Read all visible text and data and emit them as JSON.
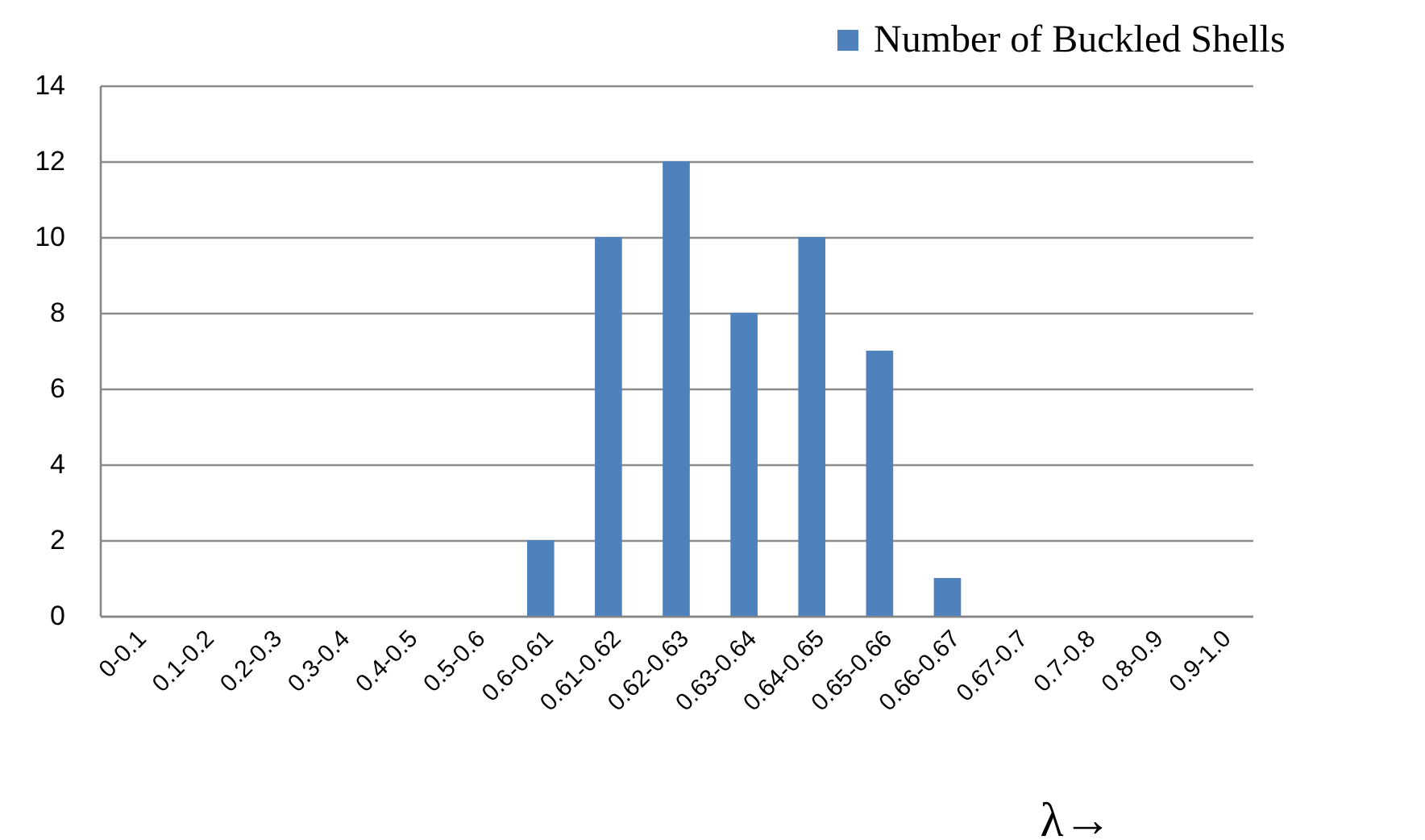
{
  "chart_data": {
    "type": "bar",
    "categories": [
      "0-0.1",
      "0.1-0.2",
      "0.2-0.3",
      "0.3-0.4",
      "0.4-0.5",
      "0.5-0.6",
      "0.6-0.61",
      "0.61-0.62",
      "0.62-0.63",
      "0.63-0.64",
      "0.64-0.65",
      "0.65-0.66",
      "0.66-0.67",
      "0.67-0.7",
      "0.7-0.8",
      "0.8-0.9",
      "0.9-1.0"
    ],
    "series": [
      {
        "name": "Number of Buckled Shells",
        "color": "#4f81bd",
        "values": [
          0,
          0,
          0,
          0,
          0,
          0,
          2,
          10,
          12,
          8,
          10,
          7,
          1,
          0,
          0,
          0,
          0
        ]
      }
    ],
    "xlabel": "λ→",
    "ylim": [
      0,
      14
    ],
    "yticks": [
      0,
      2,
      4,
      6,
      8,
      10,
      12,
      14
    ],
    "grid": "y",
    "legend": "top right"
  }
}
